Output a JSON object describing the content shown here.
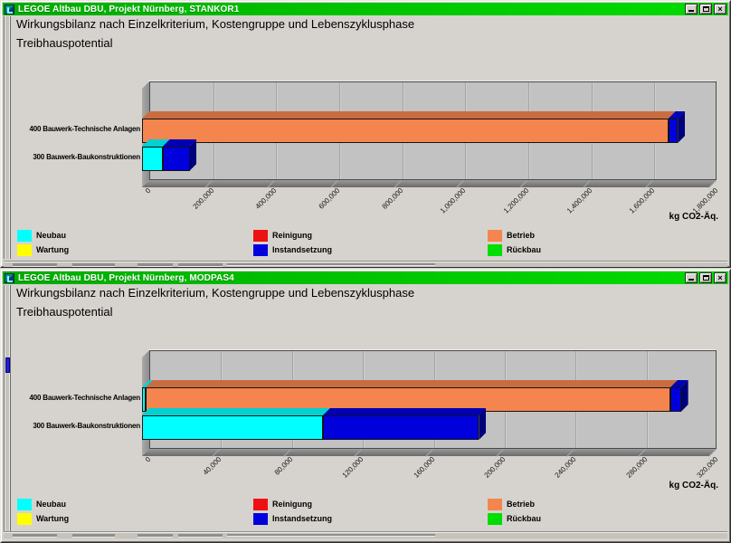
{
  "colors": {
    "titlebar_green": "#00C400",
    "window_face": "#D6D3CE",
    "plot_wall": "#C2C2C2"
  },
  "window_controls": {
    "minimize": "minimize",
    "maximize": "maximize",
    "close": "×"
  },
  "legend": {
    "columns": [
      [
        {
          "label": "Neubau",
          "color": "#00FFFF"
        },
        {
          "label": "Wartung",
          "color": "#FFFF00"
        }
      ],
      [
        {
          "label": "Reinigung",
          "color": "#EE1111"
        },
        {
          "label": "Instandsetzung",
          "color": "#0000DD"
        }
      ],
      [
        {
          "label": "Betrieb",
          "color": "#F5854E"
        },
        {
          "label": "Rückbau",
          "color": "#00DD00"
        }
      ]
    ]
  },
  "windows": [
    {
      "title": "LEGOE Altbau DBU, Projekt Nürnberg, STANKOR1",
      "chart_data": {
        "type": "bar",
        "orientation": "horizontal",
        "stacked": true,
        "title": "Wirkungsbilanz nach Einzelkriterium, Kostengruppe und Lebenszyklusphase",
        "subtitle": "Treibhauspotential",
        "xlabel": "kg CO2-Äq.",
        "categories": [
          "400 Bauwerk-Technische Anlagen",
          "300 Bauwerk-Baukonstruktionen"
        ],
        "series": [
          {
            "name": "Neubau",
            "color": "#00FFFF",
            "values": [
              0,
              65000
            ]
          },
          {
            "name": "Wartung",
            "color": "#FFFF00",
            "values": [
              0,
              0
            ]
          },
          {
            "name": "Reinigung",
            "color": "#EE1111",
            "values": [
              0,
              0
            ]
          },
          {
            "name": "Betrieb",
            "color": "#F5854E",
            "values": [
              1670000,
              0
            ]
          },
          {
            "name": "Instandsetzung",
            "color": "#0000DD",
            "values": [
              30000,
              85000
            ]
          },
          {
            "name": "Rückbau",
            "color": "#00DD00",
            "values": [
              0,
              0
            ]
          }
        ],
        "xlim": [
          0,
          1800000
        ],
        "tick_step": 200000,
        "tick_labels": [
          "0",
          "200,000",
          "400,000",
          "600,000",
          "800,000",
          "1,000,000",
          "1,200,000",
          "1,400,000",
          "1,600,000",
          "1,800,000"
        ],
        "grid": true,
        "legend_position": "bottom"
      }
    },
    {
      "title": "LEGOE Altbau DBU, Projekt Nürnberg, MODPAS4",
      "chart_data": {
        "type": "bar",
        "orientation": "horizontal",
        "stacked": true,
        "title": "Wirkungsbilanz nach Einzelkriterium, Kostengruppe und Lebenszyklusphase",
        "subtitle": "Treibhauspotential",
        "xlabel": "kg CO2-Äq.",
        "categories": [
          "400 Bauwerk-Technische Anlagen",
          "300 Bauwerk-Baukonstruktionen"
        ],
        "series": [
          {
            "name": "Neubau",
            "color": "#00FFFF",
            "values": [
              2000,
              102000
            ]
          },
          {
            "name": "Wartung",
            "color": "#FFFF00",
            "values": [
              0,
              0
            ]
          },
          {
            "name": "Reinigung",
            "color": "#EE1111",
            "values": [
              0,
              0
            ]
          },
          {
            "name": "Betrieb",
            "color": "#F5854E",
            "values": [
              296000,
              0
            ]
          },
          {
            "name": "Instandsetzung",
            "color": "#0000DD",
            "values": [
              6000,
              88000
            ]
          },
          {
            "name": "Rückbau",
            "color": "#00DD00",
            "values": [
              0,
              0
            ]
          }
        ],
        "xlim": [
          0,
          320000
        ],
        "tick_step": 40000,
        "tick_labels": [
          "0",
          "40,000",
          "80,000",
          "120,000",
          "160,000",
          "200,000",
          "240,000",
          "280,000",
          "320,000"
        ],
        "grid": true,
        "legend_position": "bottom"
      }
    }
  ]
}
